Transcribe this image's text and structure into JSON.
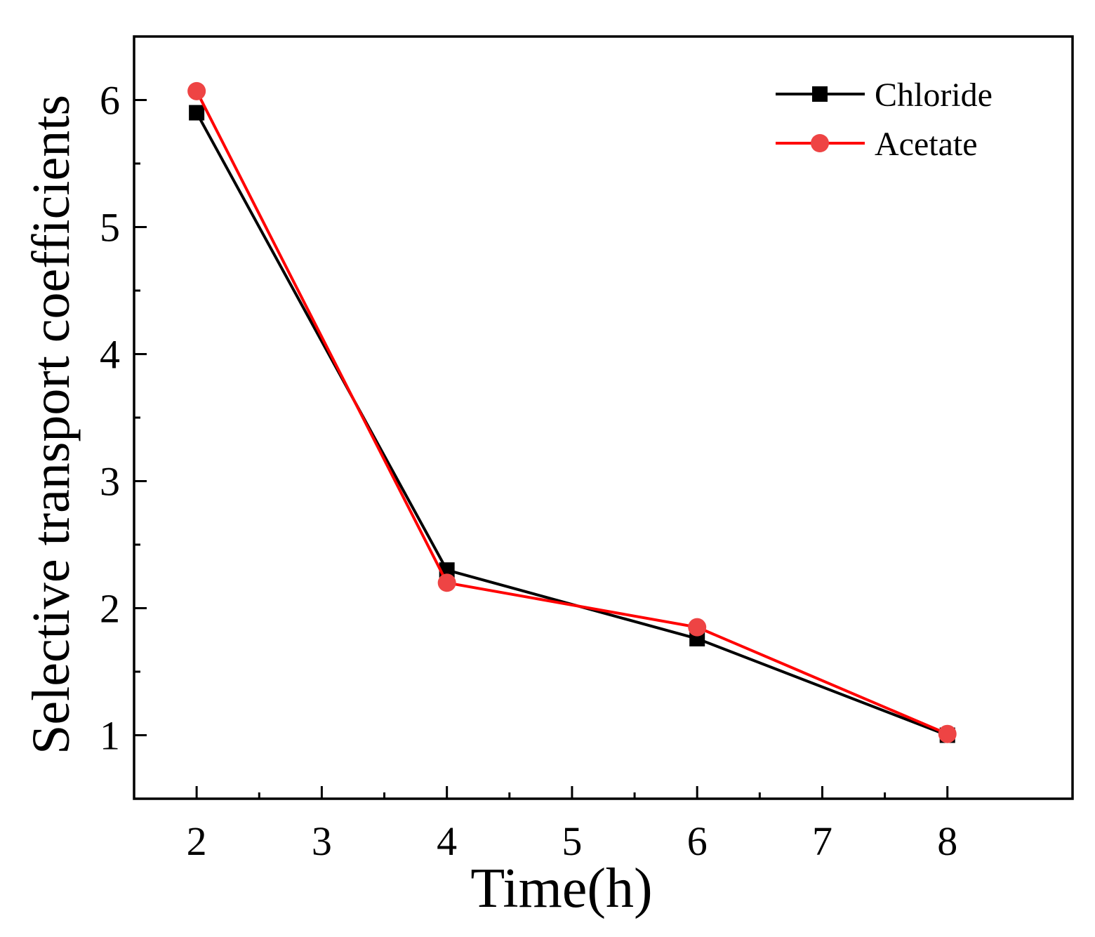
{
  "chart_data": {
    "type": "line",
    "title": "",
    "xlabel": "Time(h)",
    "ylabel": "Selective transport coefficients",
    "xlim": [
      1.5,
      9.0
    ],
    "ylim": [
      0.5,
      6.5
    ],
    "xticks": [
      2,
      3,
      4,
      5,
      6,
      7,
      8
    ],
    "xtick_labels": [
      "2",
      "3",
      "4",
      "5",
      "6",
      "7",
      "8"
    ],
    "yticks": [
      1,
      2,
      3,
      4,
      5,
      6
    ],
    "ytick_labels": [
      "1",
      "2",
      "3",
      "4",
      "5",
      "6"
    ],
    "grid": false,
    "legend_position": "top-right",
    "series": [
      {
        "name": "Chloride",
        "color": "#000000",
        "marker": "square",
        "x": [
          2,
          4,
          6,
          8
        ],
        "values": [
          5.9,
          2.3,
          1.76,
          1.0
        ]
      },
      {
        "name": "Acetate",
        "color": "#ff0000",
        "marker_color": "#ee4444",
        "marker": "circle",
        "x": [
          2,
          4,
          6,
          8
        ],
        "values": [
          6.07,
          2.2,
          1.85,
          1.01
        ]
      }
    ]
  }
}
